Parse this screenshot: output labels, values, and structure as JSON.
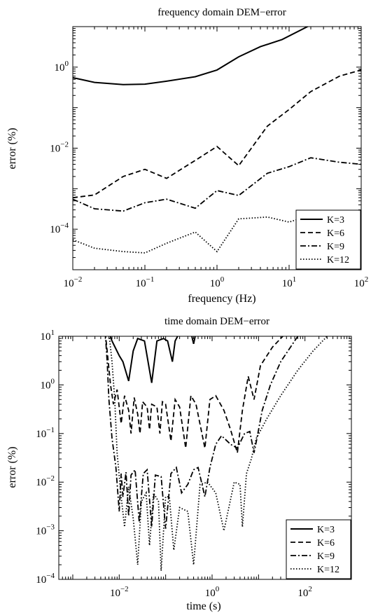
{
  "chart_data": [
    {
      "type": "line",
      "title": "frequency domain DEM−error",
      "xlabel": "frequency (Hz)",
      "ylabel": "error (%)",
      "xscale": "log",
      "yscale": "log",
      "xlim": [
        0.01,
        100
      ],
      "ylim": [
        1e-05,
        10
      ],
      "x_ticks": [
        0.01,
        0.1,
        1,
        10,
        100
      ],
      "x_tick_labels": [
        {
          "base": "10",
          "exp": "−2"
        },
        {
          "base": "10",
          "exp": "−1"
        },
        {
          "base": "10",
          "exp": "0"
        },
        {
          "base": "10",
          "exp": "1"
        },
        {
          "base": "10",
          "exp": "2"
        }
      ],
      "y_ticks": [
        0.0001,
        0.01,
        1
      ],
      "y_tick_labels": [
        {
          "base": "10",
          "exp": "−4"
        },
        {
          "base": "10",
          "exp": "−2"
        },
        {
          "base": "10",
          "exp": "0"
        }
      ],
      "grid": false,
      "legend_position": "bottom-right",
      "series": [
        {
          "name": "K=3",
          "style": "solid",
          "points": [
            [
              0.01,
              0.55
            ],
            [
              0.02,
              0.42
            ],
            [
              0.05,
              0.37
            ],
            [
              0.1,
              0.38
            ],
            [
              0.2,
              0.45
            ],
            [
              0.5,
              0.58
            ],
            [
              1,
              0.85
            ],
            [
              2,
              1.8
            ],
            [
              4,
              3.2
            ],
            [
              8,
              4.8
            ],
            [
              20,
              11
            ]
          ]
        },
        {
          "name": "K=6",
          "style": "dashed",
          "points": [
            [
              0.01,
              0.0006
            ],
            [
              0.02,
              0.0007
            ],
            [
              0.05,
              0.002
            ],
            [
              0.1,
              0.003
            ],
            [
              0.2,
              0.0018
            ],
            [
              0.5,
              0.005
            ],
            [
              1,
              0.011
            ],
            [
              2,
              0.0037
            ],
            [
              5,
              0.035
            ],
            [
              10,
              0.09
            ],
            [
              20,
              0.25
            ],
            [
              50,
              0.6
            ],
            [
              100,
              0.85
            ]
          ]
        },
        {
          "name": "K=9",
          "style": "dashdot",
          "points": [
            [
              0.01,
              0.00055
            ],
            [
              0.02,
              0.00032
            ],
            [
              0.05,
              0.00028
            ],
            [
              0.1,
              0.00045
            ],
            [
              0.2,
              0.00055
            ],
            [
              0.5,
              0.00033
            ],
            [
              1,
              0.0009
            ],
            [
              2,
              0.00068
            ],
            [
              5,
              0.0024
            ],
            [
              10,
              0.0035
            ],
            [
              20,
              0.0058
            ],
            [
              50,
              0.0045
            ],
            [
              100,
              0.004
            ]
          ]
        },
        {
          "name": "K=12",
          "style": "dotted",
          "points": [
            [
              0.01,
              5.5e-05
            ],
            [
              0.02,
              3.4e-05
            ],
            [
              0.05,
              2.8e-05
            ],
            [
              0.1,
              2.6e-05
            ],
            [
              0.2,
              4.5e-05
            ],
            [
              0.5,
              8.5e-05
            ],
            [
              1,
              2.8e-05
            ],
            [
              2,
              0.00018
            ],
            [
              5,
              0.0002
            ],
            [
              10,
              0.00015
            ],
            [
              20,
              0.00022
            ],
            [
              50,
              0.0002
            ],
            [
              100,
              0.00015
            ]
          ]
        }
      ]
    },
    {
      "type": "line",
      "title": "time domain DEM−error",
      "xlabel": "time (s)",
      "ylabel": "error (%)",
      "xscale": "log",
      "yscale": "log",
      "xlim": [
        0.0005,
        1000
      ],
      "ylim": [
        0.0001,
        10
      ],
      "x_ticks": [
        0.01,
        1,
        100
      ],
      "x_tick_labels": [
        {
          "base": "10",
          "exp": "−2"
        },
        {
          "base": "10",
          "exp": "0"
        },
        {
          "base": "10",
          "exp": "2"
        }
      ],
      "y_ticks": [
        0.0001,
        0.001,
        0.01,
        0.1,
        1,
        10
      ],
      "y_tick_labels": [
        {
          "base": "10",
          "exp": "−4"
        },
        {
          "base": "10",
          "exp": "−3"
        },
        {
          "base": "10",
          "exp": "−2"
        },
        {
          "base": "10",
          "exp": "−1"
        },
        {
          "base": "10",
          "exp": "0"
        },
        {
          "base": "10",
          "exp": "1"
        }
      ],
      "grid": false,
      "legend_position": "bottom-right",
      "series": [
        {
          "name": "K=3",
          "style": "solid",
          "points": [
            [
              0.006,
              12
            ],
            [
              0.007,
              8
            ],
            [
              0.01,
              4
            ],
            [
              0.012,
              3
            ],
            [
              0.016,
              1.2
            ],
            [
              0.02,
              5
            ],
            [
              0.025,
              9
            ],
            [
              0.035,
              8
            ],
            [
              0.05,
              1.1
            ],
            [
              0.065,
              8
            ],
            [
              0.09,
              9
            ],
            [
              0.11,
              8
            ],
            [
              0.14,
              3
            ],
            [
              0.16,
              8
            ],
            [
              0.2,
              12
            ],
            [
              0.35,
              12
            ],
            [
              0.4,
              7
            ],
            [
              0.45,
              12
            ]
          ]
        },
        {
          "name": "K=6",
          "style": "dashed",
          "points": [
            [
              0.005,
              12
            ],
            [
              0.0055,
              5
            ],
            [
              0.0065,
              1
            ],
            [
              0.0075,
              0.4
            ],
            [
              0.009,
              0.8
            ],
            [
              0.011,
              0.16
            ],
            [
              0.013,
              0.6
            ],
            [
              0.016,
              0.3
            ],
            [
              0.018,
              0.1
            ],
            [
              0.021,
              0.55
            ],
            [
              0.025,
              0.25
            ],
            [
              0.028,
              0.1
            ],
            [
              0.032,
              0.45
            ],
            [
              0.04,
              0.35
            ],
            [
              0.045,
              0.12
            ],
            [
              0.05,
              0.4
            ],
            [
              0.065,
              0.35
            ],
            [
              0.075,
              0.1
            ],
            [
              0.085,
              0.45
            ],
            [
              0.1,
              0.4
            ],
            [
              0.13,
              0.07
            ],
            [
              0.16,
              0.5
            ],
            [
              0.2,
              0.35
            ],
            [
              0.27,
              0.05
            ],
            [
              0.35,
              0.6
            ],
            [
              0.45,
              0.4
            ],
            [
              0.7,
              0.05
            ],
            [
              0.9,
              0.5
            ],
            [
              1.2,
              0.6
            ],
            [
              1.8,
              0.3
            ],
            [
              2.5,
              0.12
            ],
            [
              3.5,
              0.04
            ],
            [
              4.5,
              0.3
            ],
            [
              6,
              1.5
            ],
            [
              8,
              0.5
            ],
            [
              11,
              2.5
            ],
            [
              20,
              6
            ],
            [
              40,
              12
            ]
          ]
        },
        {
          "name": "K=9",
          "style": "dashdot",
          "points": [
            [
              0.005,
              12
            ],
            [
              0.0055,
              3
            ],
            [
              0.006,
              0.5
            ],
            [
              0.007,
              0.08
            ],
            [
              0.0085,
              0.02
            ],
            [
              0.01,
              0.0025
            ],
            [
              0.011,
              0.015
            ],
            [
              0.012,
              0.005
            ],
            [
              0.014,
              0.016
            ],
            [
              0.016,
              0.002
            ],
            [
              0.018,
              0.014
            ],
            [
              0.022,
              0.018
            ],
            [
              0.027,
              0.0015
            ],
            [
              0.033,
              0.015
            ],
            [
              0.04,
              0.018
            ],
            [
              0.05,
              0.0012
            ],
            [
              0.06,
              0.014
            ],
            [
              0.08,
              0.013
            ],
            [
              0.1,
              0.0011
            ],
            [
              0.13,
              0.015
            ],
            [
              0.17,
              0.02
            ],
            [
              0.22,
              0.006
            ],
            [
              0.3,
              0.009
            ],
            [
              0.4,
              0.018
            ],
            [
              0.5,
              0.02
            ],
            [
              0.7,
              0.005
            ],
            [
              0.9,
              0.02
            ],
            [
              1.2,
              0.06
            ],
            [
              1.6,
              0.09
            ],
            [
              2.5,
              0.06
            ],
            [
              3.5,
              0.05
            ],
            [
              5,
              0.1
            ],
            [
              6.5,
              0.11
            ],
            [
              8,
              0.04
            ],
            [
              9,
              0.07
            ],
            [
              12,
              0.3
            ],
            [
              18,
              1
            ],
            [
              30,
              3
            ],
            [
              60,
              8
            ],
            [
              80,
              12
            ]
          ]
        },
        {
          "name": "K=12",
          "style": "dotted",
          "points": [
            [
              0.006,
              12
            ],
            [
              0.007,
              3
            ],
            [
              0.008,
              0.5
            ],
            [
              0.009,
              0.04
            ],
            [
              0.011,
              0.005
            ],
            [
              0.013,
              0.0012
            ],
            [
              0.016,
              0.008
            ],
            [
              0.02,
              0.0018
            ],
            [
              0.025,
              0.0002
            ],
            [
              0.03,
              0.004
            ],
            [
              0.038,
              0.006
            ],
            [
              0.045,
              0.0005
            ],
            [
              0.055,
              0.006
            ],
            [
              0.07,
              0.004
            ],
            [
              0.08,
              0.00015
            ],
            [
              0.1,
              0.005
            ],
            [
              0.12,
              0.005
            ],
            [
              0.15,
              0.0004
            ],
            [
              0.2,
              0.003
            ],
            [
              0.3,
              0.0025
            ],
            [
              0.4,
              0.0002
            ],
            [
              0.55,
              0.009
            ],
            [
              0.8,
              0.01
            ],
            [
              1.2,
              0.006
            ],
            [
              1.8,
              0.001
            ],
            [
              3,
              0.01
            ],
            [
              4,
              0.009
            ],
            [
              4.5,
              0.0012
            ],
            [
              5.5,
              0.015
            ],
            [
              7,
              0.03
            ],
            [
              9,
              0.08
            ],
            [
              15,
              0.2
            ],
            [
              30,
              0.6
            ],
            [
              70,
              2
            ],
            [
              150,
              5
            ],
            [
              300,
              10
            ]
          ]
        }
      ]
    }
  ]
}
